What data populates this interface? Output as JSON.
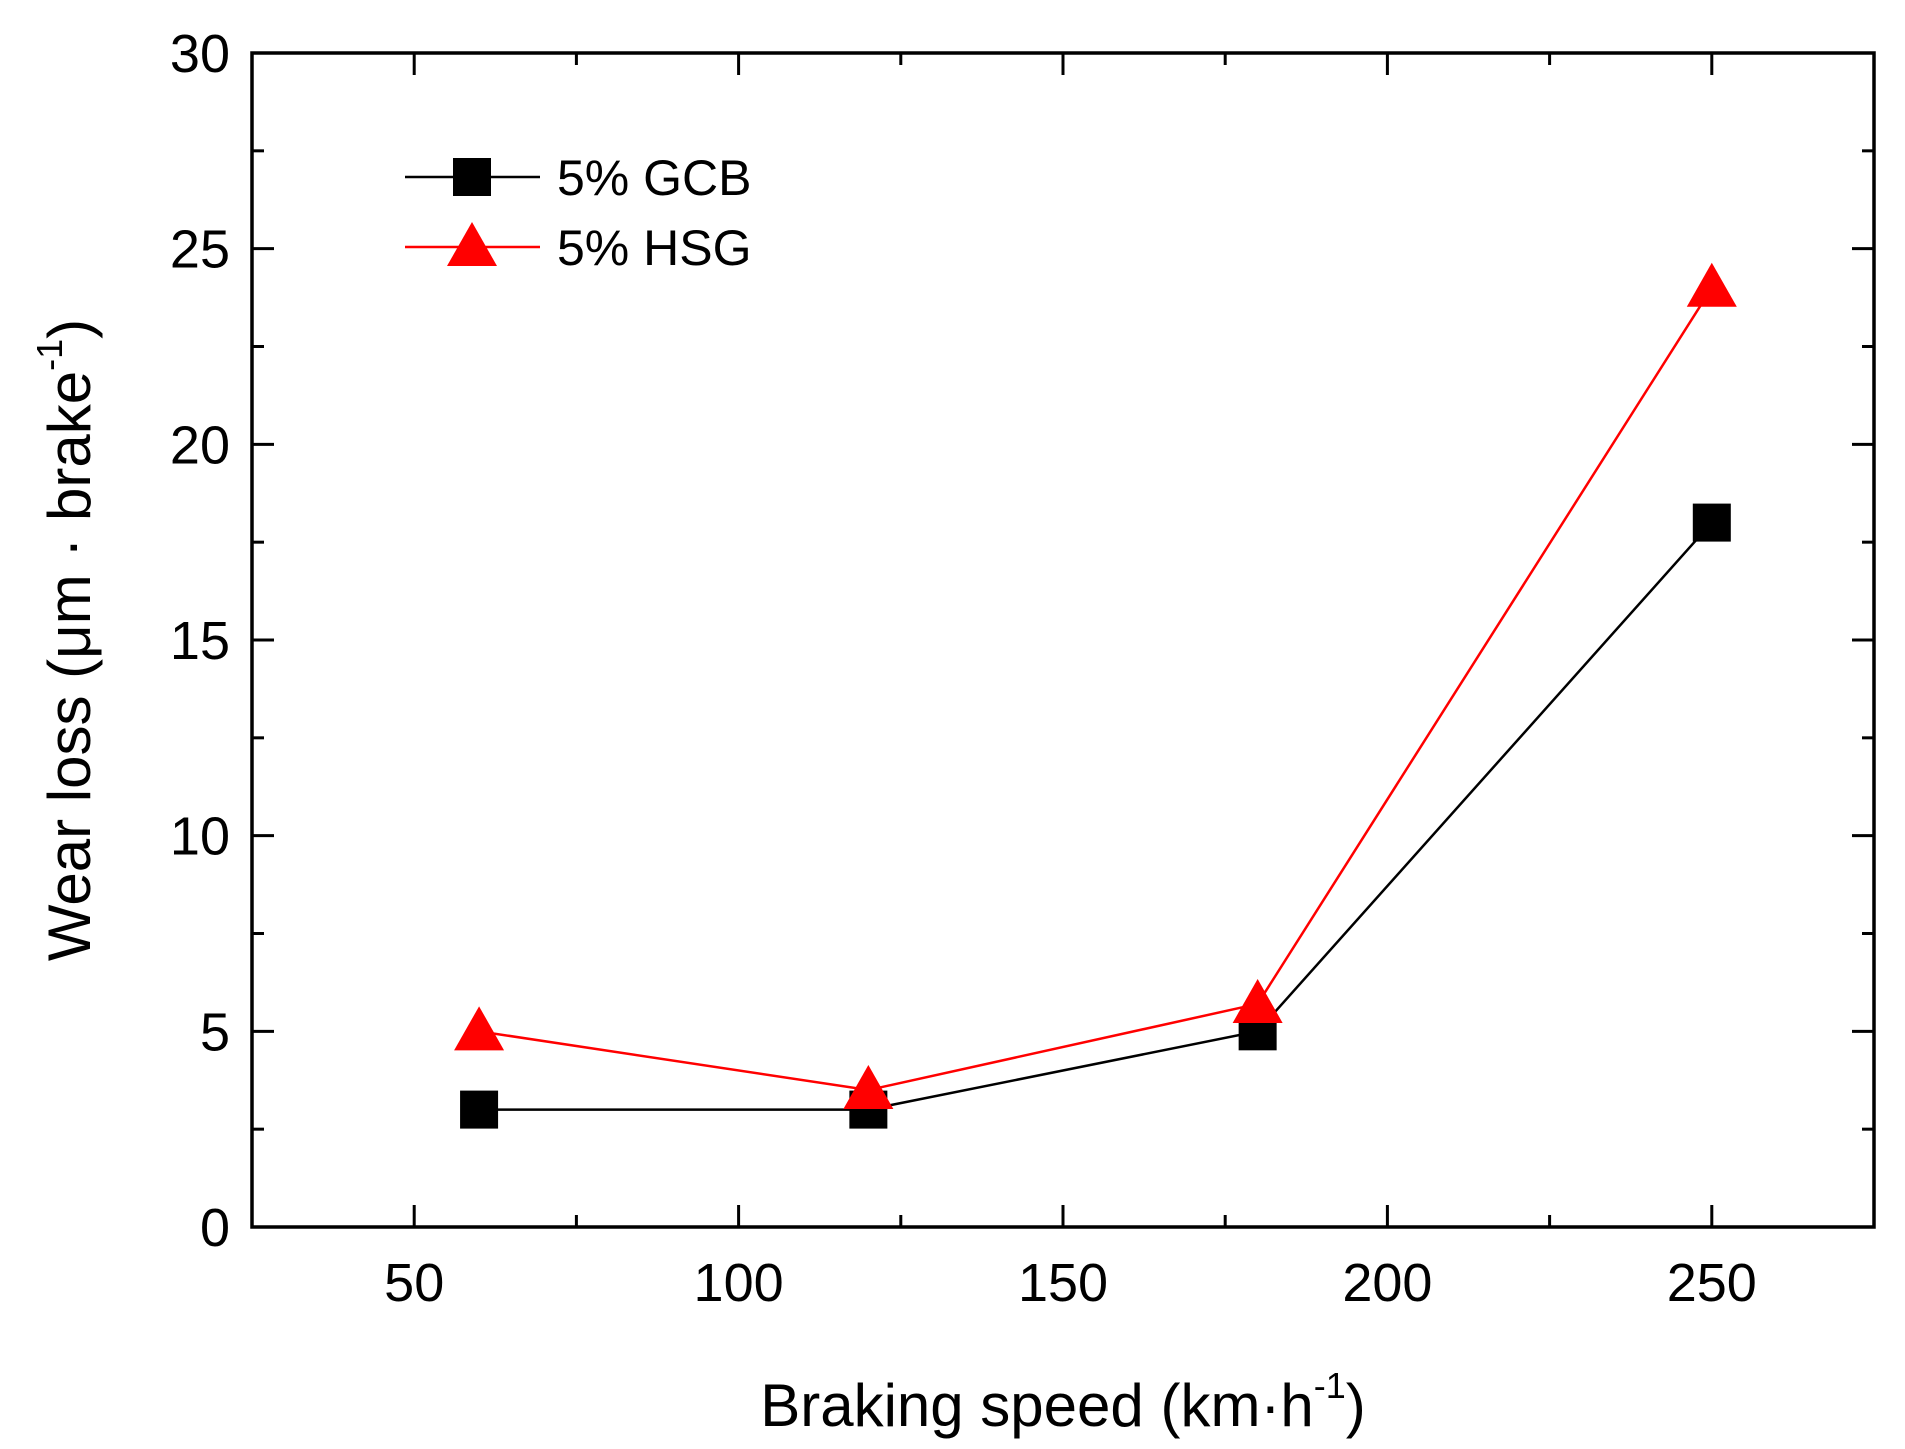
{
  "chart_data": {
    "type": "line",
    "title": "",
    "xlabel": "Braking speed (km·h",
    "xlabel_sup": "-1",
    "xlabel_end": ")",
    "ylabel": "Wear loss (μm · brake",
    "ylabel_sup": "-1",
    "ylabel_end": ")",
    "xlim": [
      25,
      275
    ],
    "ylim": [
      0,
      30
    ],
    "xticks": [
      50,
      100,
      150,
      200,
      250
    ],
    "yticks": [
      0,
      5,
      10,
      15,
      20,
      25,
      30
    ],
    "x": [
      60,
      120,
      180,
      250
    ],
    "series": [
      {
        "name": "5% GCB",
        "values": [
          3,
          3,
          5,
          18
        ],
        "color": "#000000",
        "marker": "square"
      },
      {
        "name": "5% HSG",
        "values": [
          5,
          3.5,
          5.7,
          24
        ],
        "color": "#ff0000",
        "marker": "triangle"
      }
    ],
    "legend": "top-left",
    "grid": false
  }
}
